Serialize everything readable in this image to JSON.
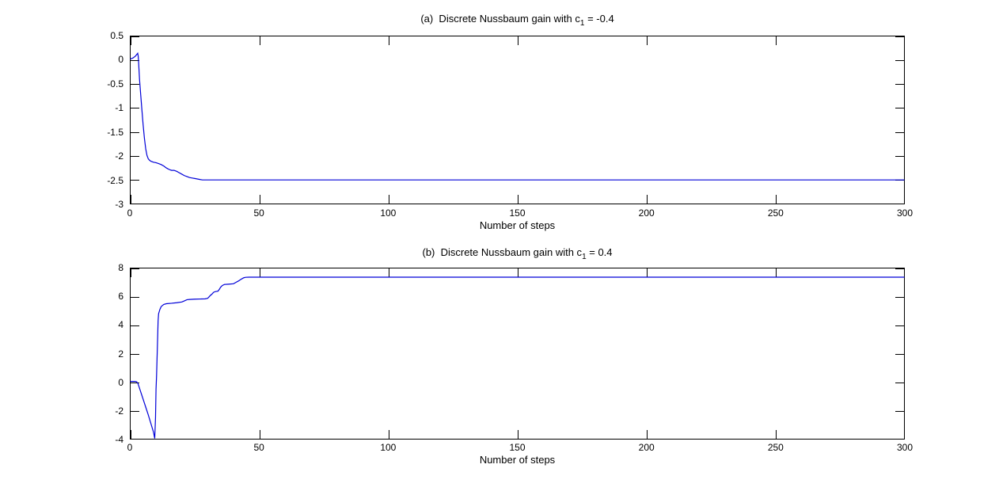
{
  "figure": {
    "background": "#ffffff",
    "axis_color": "#000000",
    "curve_color": "#0000d8"
  },
  "chart_data": [
    {
      "type": "line",
      "title_prefix": "(a)  Discrete Nussbaum gain with c",
      "title_sub": "1",
      "title_suffix": " = -0.4",
      "xlabel": "Number of steps",
      "xlim": [
        0,
        300
      ],
      "ylim": [
        -3,
        0.5
      ],
      "xticks": [
        0,
        50,
        100,
        150,
        200,
        250,
        300
      ],
      "yticks": [
        0.5,
        0,
        -0.5,
        -1,
        -1.5,
        -2,
        -2.5,
        -3
      ],
      "grid": false,
      "legend_position": "none",
      "line_color": "#0000d8",
      "series": [
        {
          "name": "discrete-nussbaum-gain-a",
          "points": [
            [
              0,
              0.02
            ],
            [
              1,
              0.04
            ],
            [
              2,
              0.08
            ],
            [
              2.6,
              0.12
            ],
            [
              2.9,
              0.14
            ],
            [
              3.1,
              0.08
            ],
            [
              3.3,
              -0.1
            ],
            [
              3.6,
              -0.4
            ],
            [
              4,
              -0.68
            ],
            [
              4.5,
              -1.02
            ],
            [
              5,
              -1.35
            ],
            [
              5.5,
              -1.63
            ],
            [
              6,
              -1.85
            ],
            [
              6.5,
              -1.99
            ],
            [
              7,
              -2.06
            ],
            [
              7.5,
              -2.09
            ],
            [
              8,
              -2.11
            ],
            [
              9,
              -2.13
            ],
            [
              10,
              -2.14
            ],
            [
              11,
              -2.16
            ],
            [
              12,
              -2.18
            ],
            [
              13,
              -2.21
            ],
            [
              14,
              -2.25
            ],
            [
              15,
              -2.28
            ],
            [
              16,
              -2.3
            ],
            [
              17,
              -2.3
            ],
            [
              18,
              -2.32
            ],
            [
              19,
              -2.35
            ],
            [
              20,
              -2.38
            ],
            [
              21,
              -2.41
            ],
            [
              22,
              -2.43
            ],
            [
              23,
              -2.45
            ],
            [
              24,
              -2.46
            ],
            [
              25,
              -2.47
            ],
            [
              26,
              -2.48
            ],
            [
              27,
              -2.49
            ],
            [
              28,
              -2.5
            ],
            [
              300,
              -2.5
            ]
          ]
        }
      ]
    },
    {
      "type": "line",
      "title_prefix": "(b)  Discrete Nussbaum gain with c",
      "title_sub": "1",
      "title_suffix": " = 0.4",
      "xlabel": "Number of steps",
      "xlim": [
        0,
        300
      ],
      "ylim": [
        -4,
        8
      ],
      "xticks": [
        0,
        50,
        100,
        150,
        200,
        250,
        300
      ],
      "yticks": [
        8,
        6,
        4,
        2,
        0,
        -2,
        -4
      ],
      "grid": false,
      "legend_position": "none",
      "line_color": "#0000d8",
      "series": [
        {
          "name": "discrete-nussbaum-gain-b",
          "points": [
            [
              0,
              0.05
            ],
            [
              1,
              0.05
            ],
            [
              2,
              0.05
            ],
            [
              2.5,
              0.02
            ],
            [
              3,
              -0.1
            ],
            [
              4,
              -0.65
            ],
            [
              5,
              -1.2
            ],
            [
              6,
              -1.75
            ],
            [
              7,
              -2.3
            ],
            [
              8,
              -2.9
            ],
            [
              9,
              -3.5
            ],
            [
              9.5,
              -3.95
            ],
            [
              9.8,
              -2.5
            ],
            [
              10,
              -0.5
            ],
            [
              10.2,
              0.4
            ],
            [
              10.5,
              2.3
            ],
            [
              10.8,
              4.3
            ],
            [
              11,
              4.8
            ],
            [
              11.5,
              5.1
            ],
            [
              12,
              5.3
            ],
            [
              13,
              5.45
            ],
            [
              14,
              5.5
            ],
            [
              16,
              5.53
            ],
            [
              18,
              5.57
            ],
            [
              20,
              5.62
            ],
            [
              21,
              5.7
            ],
            [
              22,
              5.78
            ],
            [
              23,
              5.8
            ],
            [
              25,
              5.82
            ],
            [
              27,
              5.83
            ],
            [
              29,
              5.84
            ],
            [
              30,
              5.88
            ],
            [
              30.5,
              5.97
            ],
            [
              31,
              6.07
            ],
            [
              31.7,
              6.18
            ],
            [
              32.3,
              6.3
            ],
            [
              33,
              6.35
            ],
            [
              34,
              6.38
            ],
            [
              34.5,
              6.5
            ],
            [
              35,
              6.65
            ],
            [
              35.7,
              6.78
            ],
            [
              36.5,
              6.85
            ],
            [
              38,
              6.87
            ],
            [
              40,
              6.9
            ],
            [
              41,
              7.0
            ],
            [
              42,
              7.1
            ],
            [
              43,
              7.22
            ],
            [
              44,
              7.32
            ],
            [
              44.7,
              7.35
            ],
            [
              46,
              7.36
            ],
            [
              300,
              7.36
            ]
          ]
        }
      ]
    }
  ]
}
